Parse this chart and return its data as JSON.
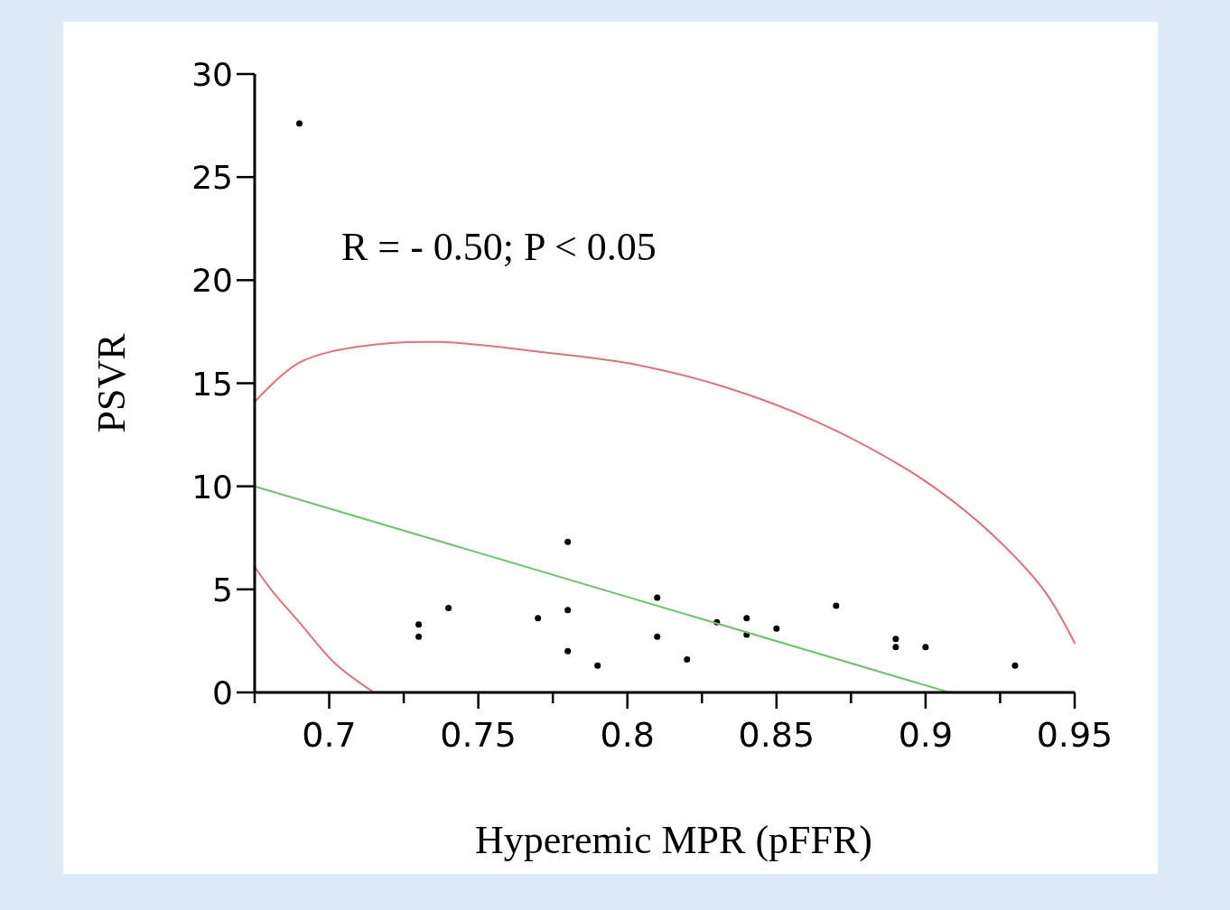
{
  "chart_data": {
    "type": "scatter",
    "xlabel": "Hyperemic MPR (pFFR)",
    "ylabel": "PSVR",
    "xlim": [
      0.675,
      0.95
    ],
    "xticks": [
      {
        "value": 0.675,
        "label": null
      },
      0.7,
      {
        "value": 0.725,
        "label": null
      },
      0.75,
      {
        "value": 0.775,
        "label": null
      },
      0.8,
      {
        "value": 0.825,
        "label": null
      },
      0.85,
      {
        "value": 0.875,
        "label": null
      },
      0.9,
      {
        "value": 0.925,
        "label": null
      },
      0.95
    ],
    "ylim": [
      0,
      30
    ],
    "yticks": [
      0,
      5,
      10,
      15,
      20,
      25,
      30
    ],
    "grid": false,
    "annotations": [
      "R = - 0.50; P < 0.05"
    ],
    "series": [
      {
        "marker": "circle",
        "color": "#000000",
        "x": [
          0.69,
          0.73,
          0.73,
          0.74,
          0.77,
          0.78,
          0.78,
          0.78,
          0.79,
          0.81,
          0.81,
          0.82,
          0.83,
          0.84,
          0.84,
          0.85,
          0.87,
          0.89,
          0.89,
          0.9,
          0.93
        ],
        "values": [
          27.6,
          3.3,
          2.7,
          4.1,
          3.6,
          7.3,
          4.0,
          2.0,
          1.3,
          4.6,
          2.7,
          1.6,
          3.4,
          3.6,
          2.8,
          3.1,
          4.2,
          2.6,
          2.2,
          2.2,
          1.3
        ]
      },
      {
        "type": "line",
        "color": "#6cc46c",
        "line_style": "solid",
        "x": [
          0.675,
          0.908
        ],
        "values": [
          10.0,
          0
        ]
      },
      {
        "type": "line",
        "color": "#e0707c",
        "line_style": "solid",
        "x": [
          0.675,
          0.69,
          0.711,
          0.737,
          0.772,
          0.803,
          0.833,
          0.864,
          0.894,
          0.909,
          0.925,
          0.94,
          0.95
        ],
        "values": [
          14.1,
          16.0,
          16.8,
          17.0,
          16.5,
          15.9,
          14.8,
          13.1,
          10.8,
          9.3,
          7.3,
          4.9,
          2.4
        ]
      },
      {
        "type": "line",
        "color": "#e0707c",
        "line_style": "solid",
        "x": [
          0.675,
          0.681,
          0.69,
          0.702,
          0.715
        ],
        "values": [
          6.1,
          4.9,
          3.4,
          1.4,
          0
        ]
      }
    ]
  }
}
